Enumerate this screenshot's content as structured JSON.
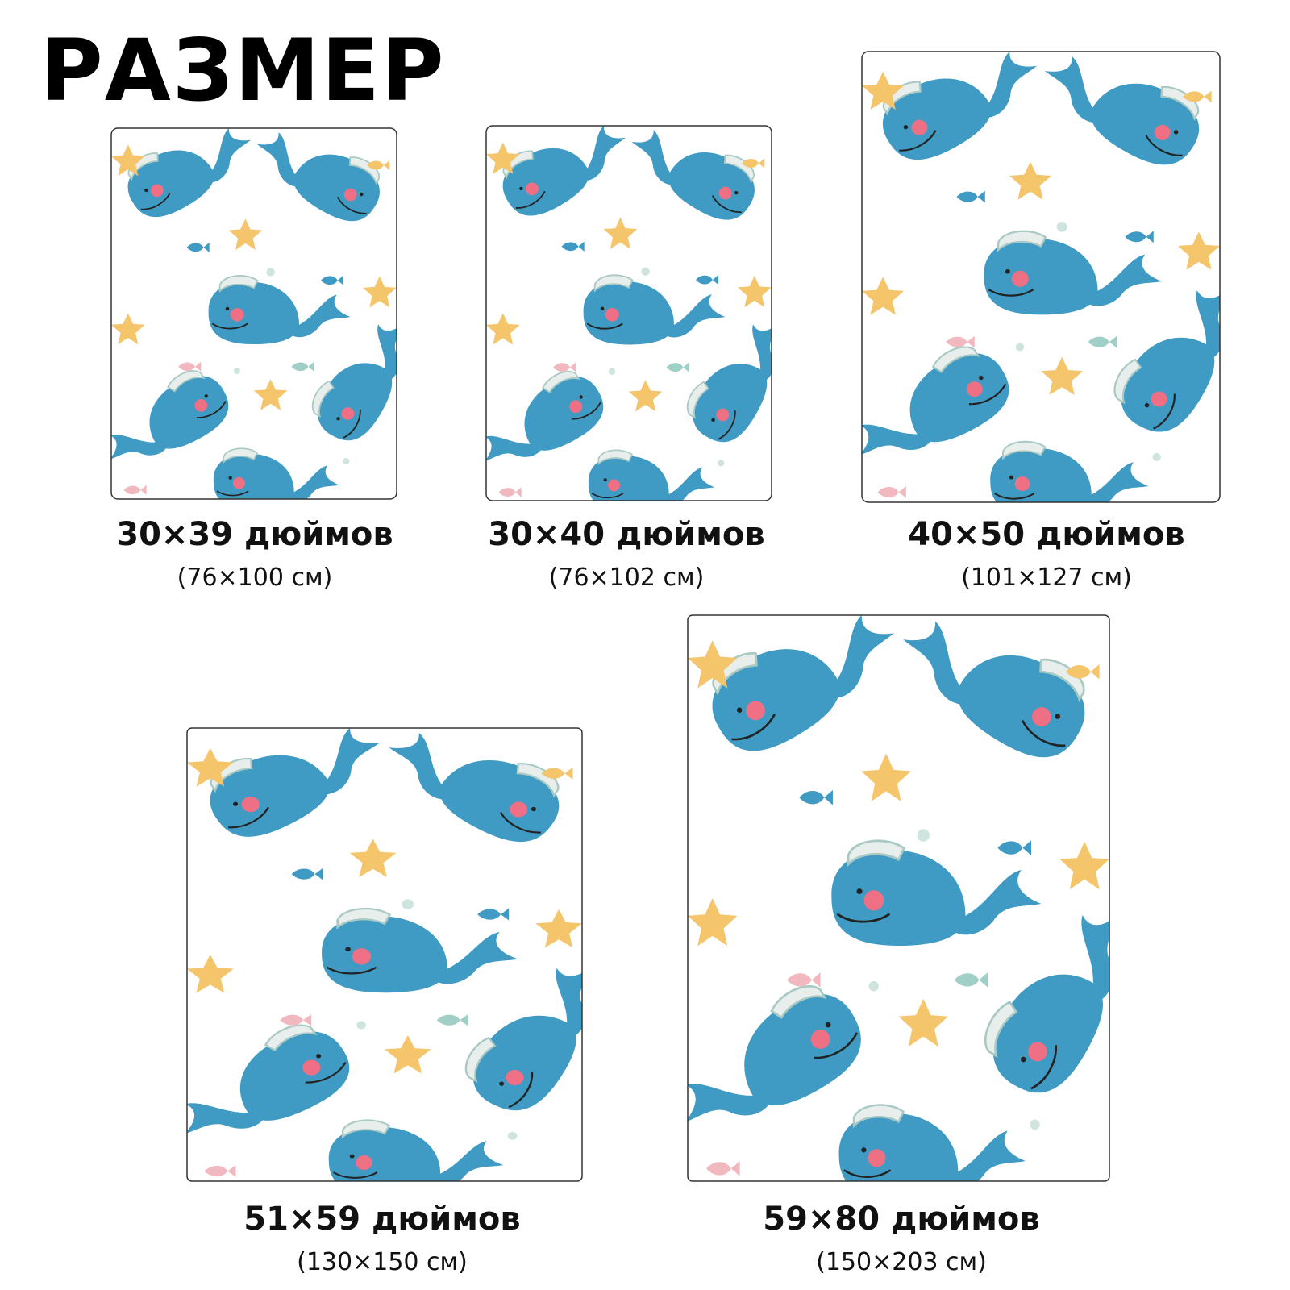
{
  "title": "РАЗМЕР",
  "sizes": [
    {
      "inches": "30×39 дюймов",
      "cm": "(76×100 см)"
    },
    {
      "inches": "30×40 дюймов",
      "cm": "(76×102 см)"
    },
    {
      "inches": "40×50 дюймов",
      "cm": "(101×127 см)"
    },
    {
      "inches": "51×59 дюймов",
      "cm": "(130×150 см)"
    },
    {
      "inches": "59×80 дюймов",
      "cm": "(150×203 см)"
    }
  ]
}
